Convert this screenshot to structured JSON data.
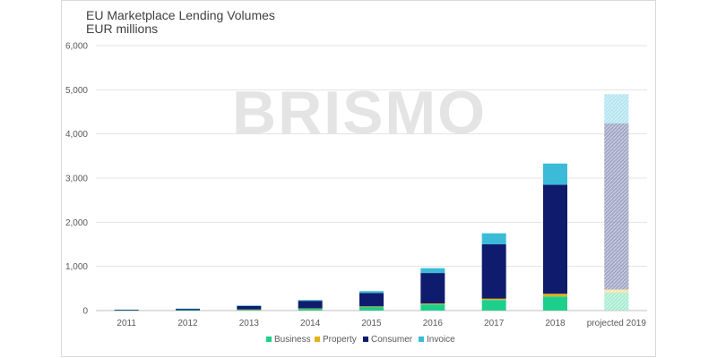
{
  "chart_data": {
    "type": "bar",
    "stacked": true,
    "title": "EU Marketplace  Lending Volumes",
    "subtitle": "EUR millions",
    "watermark": "BRISMO",
    "categories": [
      "2011",
      "2012",
      "2013",
      "2014",
      "2015",
      "2016",
      "2017",
      "2018",
      "projected 2019"
    ],
    "series": [
      {
        "name": "Business",
        "color": "#1ecf8c",
        "values": [
          5,
          10,
          20,
          40,
          80,
          140,
          240,
          320,
          400
        ]
      },
      {
        "name": "Property",
        "color": "#e3b21a",
        "values": [
          0,
          0,
          5,
          10,
          15,
          20,
          30,
          60,
          80
        ]
      },
      {
        "name": "Consumer",
        "color": "#0f1c6e",
        "values": [
          15,
          30,
          80,
          170,
          300,
          690,
          1230,
          2470,
          3760
        ]
      },
      {
        "name": "Invoice",
        "color": "#3bbbd8",
        "values": [
          0,
          5,
          10,
          20,
          45,
          110,
          250,
          480,
          660
        ]
      }
    ],
    "projected_category": "projected 2019",
    "ylim": [
      0,
      6000
    ],
    "yticks": [
      "0",
      "1,000",
      "2,000",
      "3,000",
      "4,000",
      "5,000",
      "6,000"
    ],
    "grid": true,
    "legend_position": "bottom"
  }
}
